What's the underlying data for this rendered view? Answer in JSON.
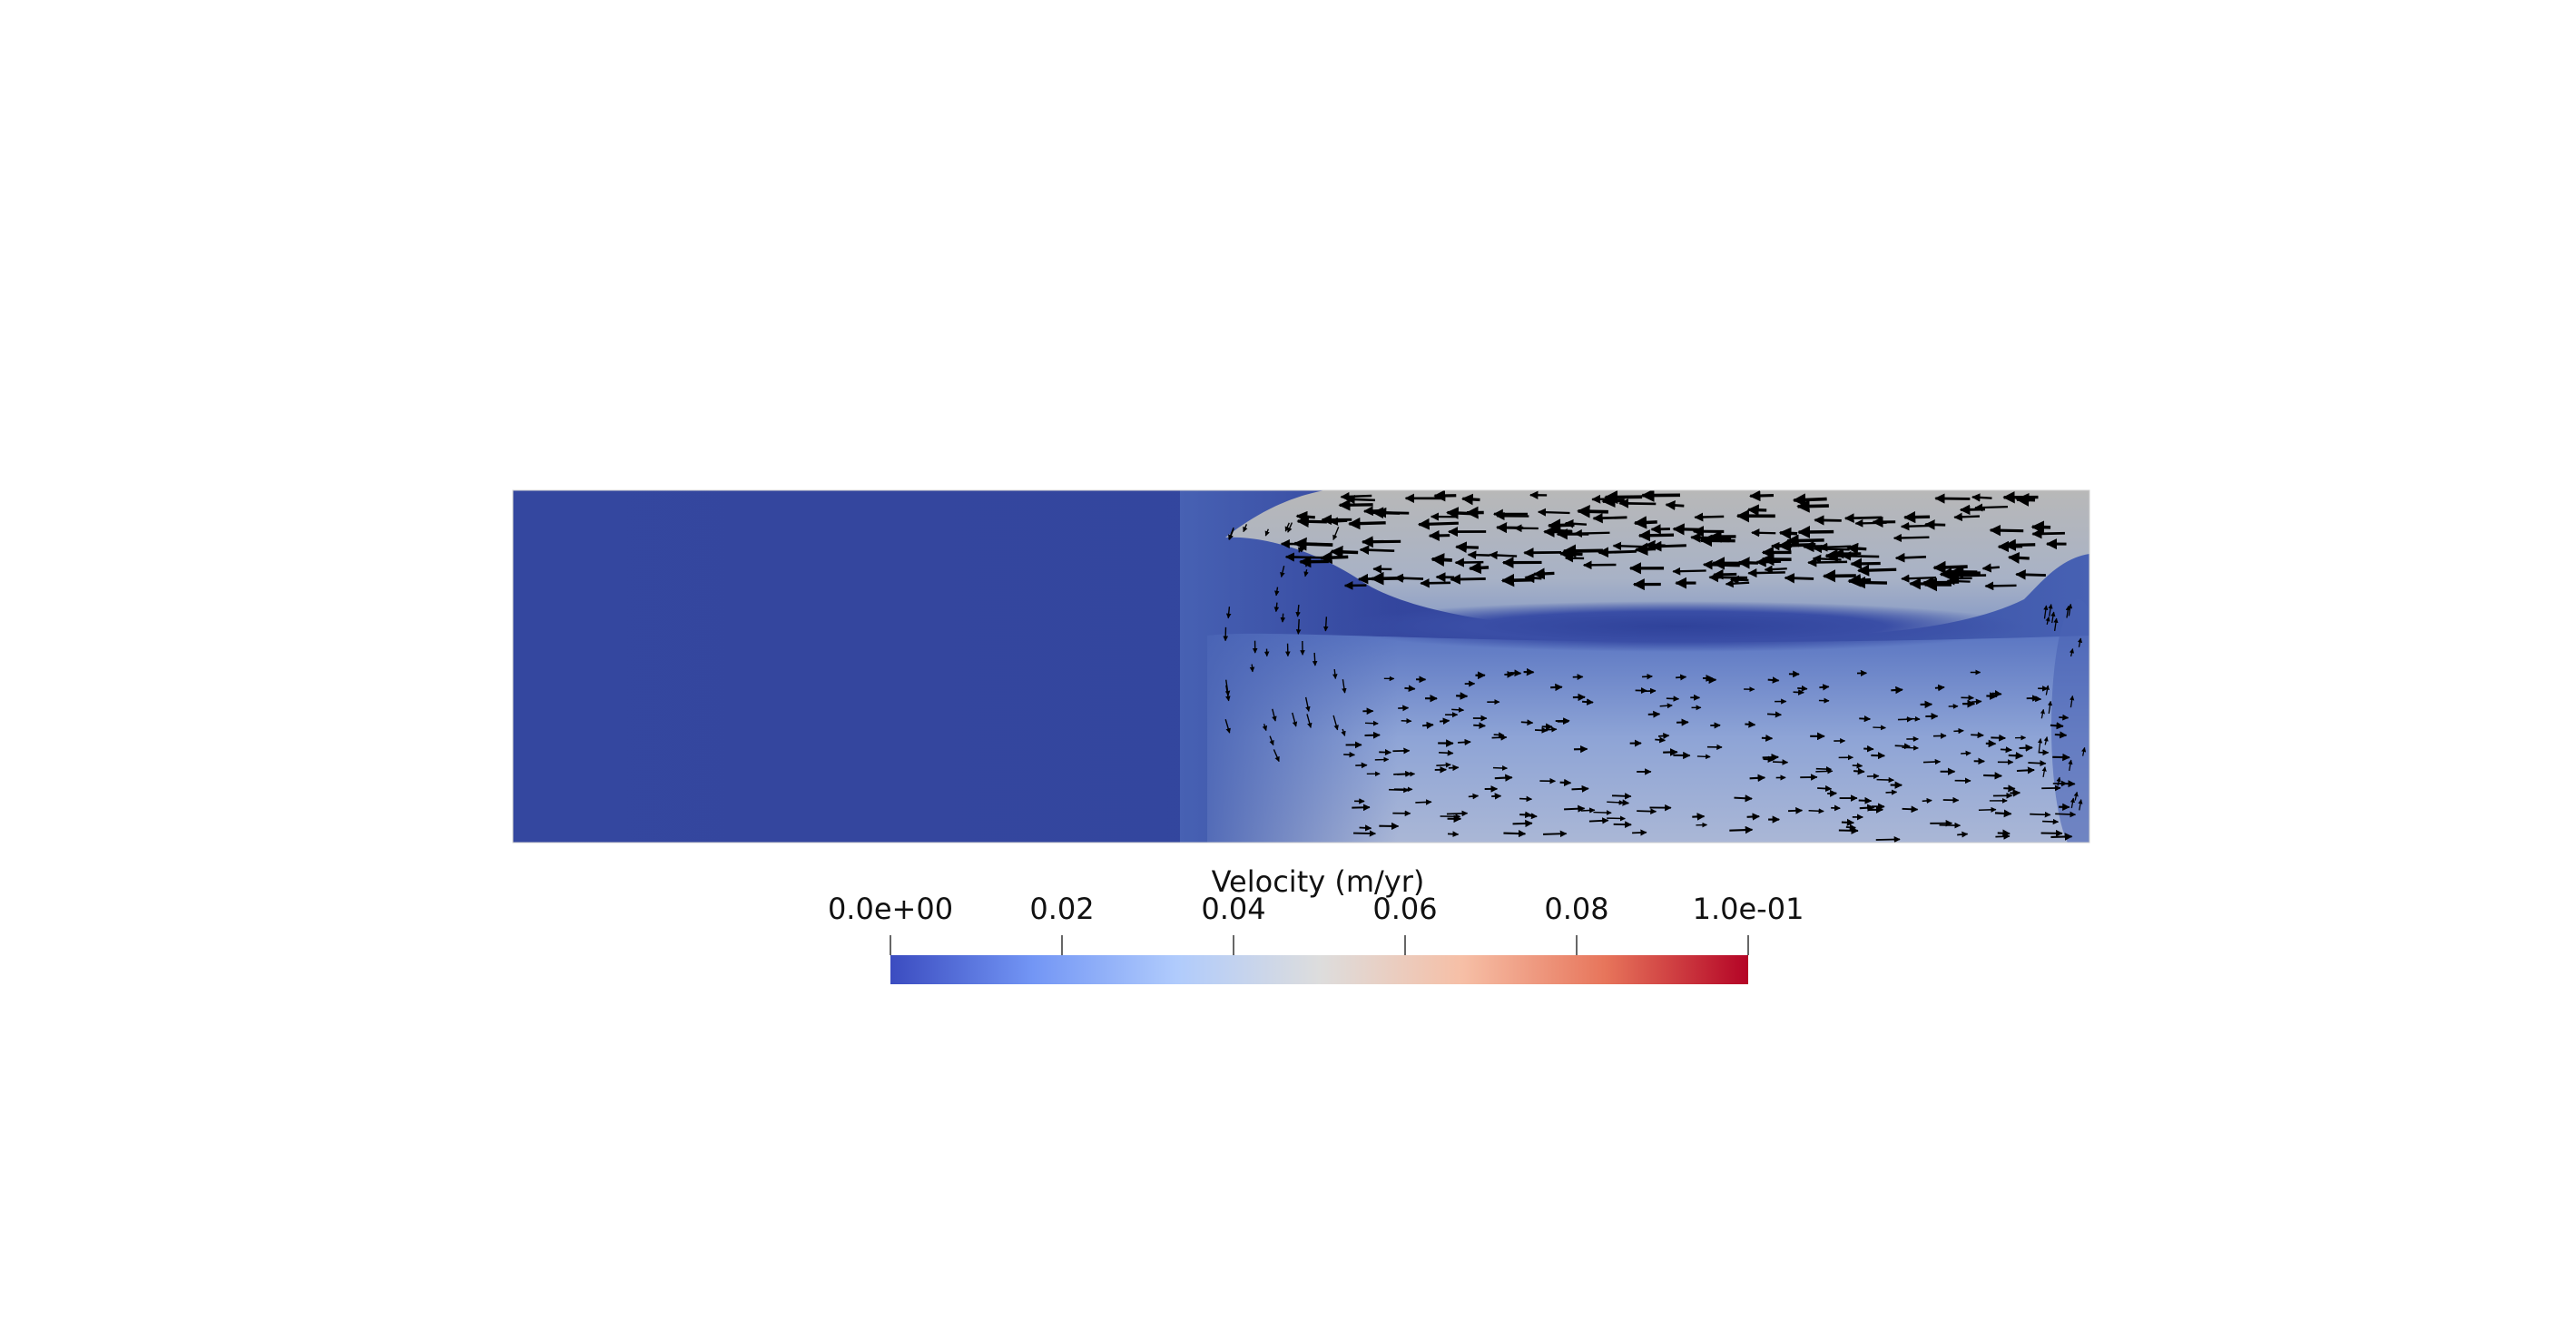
{
  "chart_data": {
    "type": "heatmap",
    "field": {
      "x_range": [
        0,
        1
      ],
      "y_range": [
        0,
        1
      ],
      "field_quantity": "velocity magnitude",
      "description_regions": [
        {
          "region": "left half",
          "value": 0.0
        },
        {
          "region": "upper-right layer",
          "value": 0.055
        },
        {
          "region": "lower-right recirculation",
          "value": 0.035
        },
        {
          "region": "central low-velocity band",
          "value": 0.004
        }
      ],
      "glyphs": "black velocity arrows; upper layer pointing left, lower layer pointing right"
    },
    "colorbar": {
      "title": "Velocity (m/yr)",
      "range": [
        0,
        0.1
      ],
      "colormap": "coolwarm",
      "colors": [
        "#3b4cc0",
        "#7396f5",
        "#b0cbfc",
        "#dddddd",
        "#f6bfa6",
        "#e7755b",
        "#b40426"
      ],
      "ticks": [
        {
          "value": 0.0,
          "label": "0.0e+00"
        },
        {
          "value": 0.02,
          "label": "0.02"
        },
        {
          "value": 0.04,
          "label": "0.04"
        },
        {
          "value": 0.06,
          "label": "0.06"
        },
        {
          "value": 0.08,
          "label": "0.08"
        },
        {
          "value": 0.1,
          "label": "1.0e-01"
        }
      ]
    }
  }
}
